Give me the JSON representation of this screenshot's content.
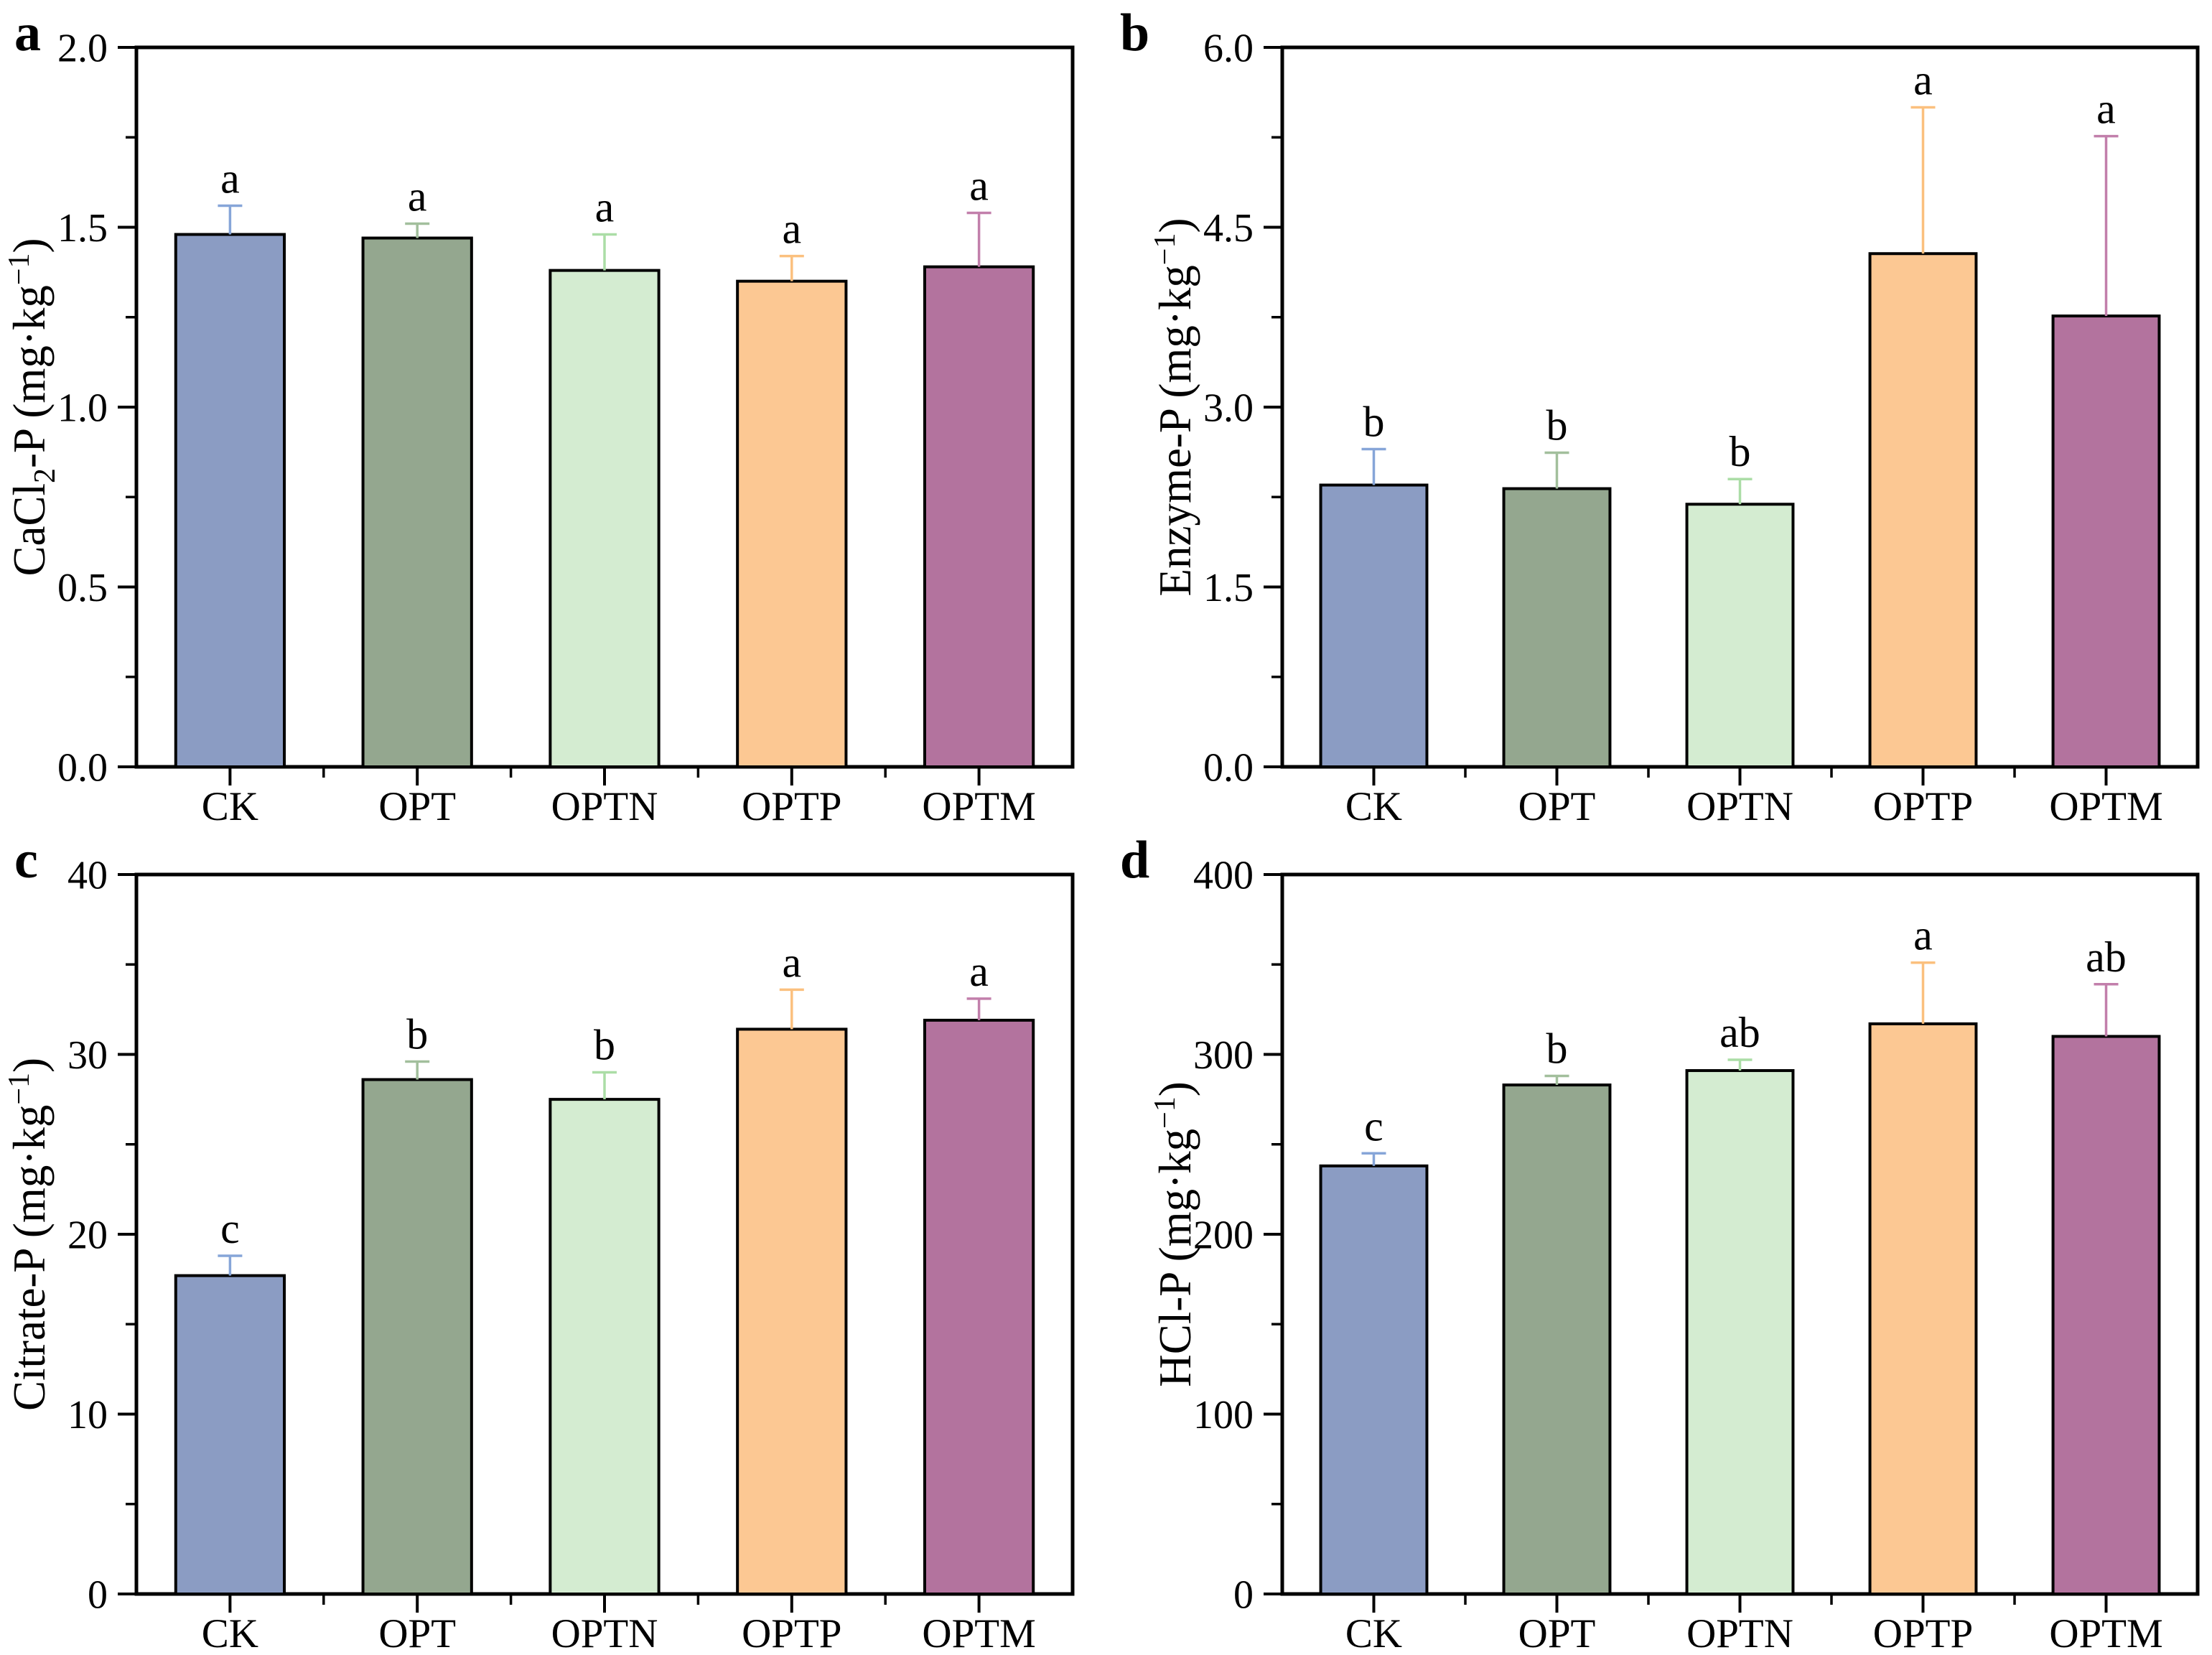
{
  "figure": {
    "background": "#ffffff",
    "treatments": [
      "CK",
      "OPT",
      "OPTN",
      "OPTP",
      "OPTM"
    ],
    "bar_colors": [
      "#8b9cc3",
      "#94a78f",
      "#d4ecd1",
      "#fcc893",
      "#b3739e"
    ],
    "error_bar_colors": [
      "#86a5d8",
      "#a2bf9c",
      "#abdda6",
      "#fbc07e",
      "#c27fab"
    ],
    "bar_edge_color": "#000000",
    "axis_color": "#000000",
    "sig_letter_color": "#000000"
  },
  "chart_data": [
    {
      "panel_letter": "a",
      "type": "bar",
      "ylabel_parts": [
        {
          "t": "CaCl",
          "s": "n"
        },
        {
          "t": "2",
          "s": "sub"
        },
        {
          "t": "-P (mg·kg",
          "s": "n"
        },
        {
          "t": "−1",
          "s": "sup"
        },
        {
          "t": ")",
          "s": "n"
        }
      ],
      "ylim": [
        0,
        2.0
      ],
      "yticks": [
        {
          "v": 0.0,
          "label": "0.0"
        },
        {
          "v": 0.5,
          "label": "0.5"
        },
        {
          "v": 1.0,
          "label": "1.0"
        },
        {
          "v": 1.5,
          "label": "1.5"
        },
        {
          "v": 2.0,
          "label": "2.0"
        }
      ],
      "yminor": [
        0.25,
        0.75,
        1.25,
        1.75
      ],
      "categories": [
        "CK",
        "OPT",
        "OPTN",
        "OPTP",
        "OPTM"
      ],
      "values": [
        1.48,
        1.47,
        1.38,
        1.35,
        1.39
      ],
      "errors_plus": [
        0.08,
        0.04,
        0.1,
        0.07,
        0.15
      ],
      "sig_letters": [
        "a",
        "a",
        "a",
        "a",
        "a"
      ],
      "grid": false,
      "legend": "none"
    },
    {
      "panel_letter": "b",
      "type": "bar",
      "ylabel_parts": [
        {
          "t": "Enzyme-P (mg·kg",
          "s": "n"
        },
        {
          "t": "−1",
          "s": "sup"
        },
        {
          "t": ")",
          "s": "n"
        }
      ],
      "ylim": [
        0,
        6.0
      ],
      "yticks": [
        {
          "v": 0.0,
          "label": "0.0"
        },
        {
          "v": 1.5,
          "label": "1.5"
        },
        {
          "v": 3.0,
          "label": "3.0"
        },
        {
          "v": 4.5,
          "label": "4.5"
        },
        {
          "v": 6.0,
          "label": "6.0"
        }
      ],
      "yminor": [
        0.75,
        2.25,
        3.75,
        5.25
      ],
      "categories": [
        "CK",
        "OPT",
        "OPTN",
        "OPTP",
        "OPTM"
      ],
      "values": [
        2.35,
        2.32,
        2.19,
        4.28,
        3.76
      ],
      "errors_plus": [
        0.3,
        0.3,
        0.21,
        1.22,
        1.5
      ],
      "sig_letters": [
        "b",
        "b",
        "b",
        "a",
        "a"
      ],
      "grid": false,
      "legend": "none"
    },
    {
      "panel_letter": "c",
      "type": "bar",
      "ylabel_parts": [
        {
          "t": "Citrate-P (mg·kg",
          "s": "n"
        },
        {
          "t": "−1",
          "s": "sup"
        },
        {
          "t": ")",
          "s": "n"
        }
      ],
      "ylim": [
        0,
        40
      ],
      "yticks": [
        {
          "v": 0,
          "label": "0"
        },
        {
          "v": 10,
          "label": "10"
        },
        {
          "v": 20,
          "label": "20"
        },
        {
          "v": 30,
          "label": "30"
        },
        {
          "v": 40,
          "label": "40"
        }
      ],
      "yminor": [
        5,
        15,
        25,
        35
      ],
      "categories": [
        "CK",
        "OPT",
        "OPTN",
        "OPTP",
        "OPTM"
      ],
      "values": [
        17.7,
        28.6,
        27.5,
        31.4,
        31.9
      ],
      "errors_plus": [
        1.1,
        1.0,
        1.5,
        2.2,
        1.2
      ],
      "sig_letters": [
        "c",
        "b",
        "b",
        "a",
        "a"
      ],
      "grid": false,
      "legend": "none"
    },
    {
      "panel_letter": "d",
      "type": "bar",
      "ylabel_parts": [
        {
          "t": "HCl-P (mg·kg",
          "s": "n"
        },
        {
          "t": "−1",
          "s": "sup"
        },
        {
          "t": ")",
          "s": "n"
        }
      ],
      "ylim": [
        0,
        400
      ],
      "yticks": [
        {
          "v": 0,
          "label": "0"
        },
        {
          "v": 100,
          "label": "100"
        },
        {
          "v": 200,
          "label": "200"
        },
        {
          "v": 300,
          "label": "300"
        },
        {
          "v": 400,
          "label": "400"
        }
      ],
      "yminor": [
        50,
        150,
        250,
        350
      ],
      "categories": [
        "CK",
        "OPT",
        "OPTN",
        "OPTP",
        "OPTM"
      ],
      "values": [
        238,
        283,
        291,
        317,
        310
      ],
      "errors_plus": [
        7,
        5,
        6,
        34,
        29
      ],
      "sig_letters": [
        "c",
        "b",
        "ab",
        "a",
        "ab"
      ],
      "grid": false,
      "legend": "none"
    }
  ]
}
